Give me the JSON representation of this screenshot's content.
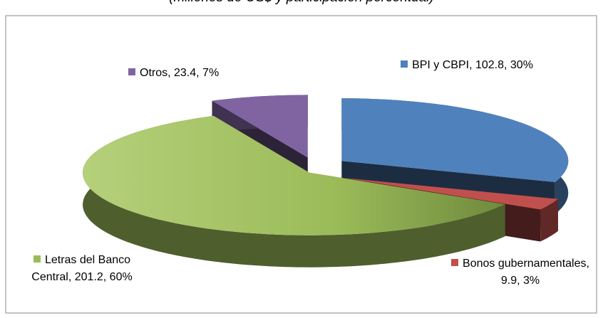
{
  "chart_data": {
    "type": "pie3d",
    "subtitle": "(millones de US$ y participación porcentual)",
    "values": [
      102.8,
      9.9,
      201.2,
      23.4
    ],
    "value_labels": [
      "BPI y CBPI, 102.8, 30%",
      "Bonos gubernamentales, 9.9, 3%",
      "Letras del Banco Central, 201.2, 60%",
      "Otros, 23.4, 7%"
    ],
    "colors": [
      "#4f81bd",
      "#c0504d",
      "#9bbb59",
      "#8064a2"
    ]
  }
}
